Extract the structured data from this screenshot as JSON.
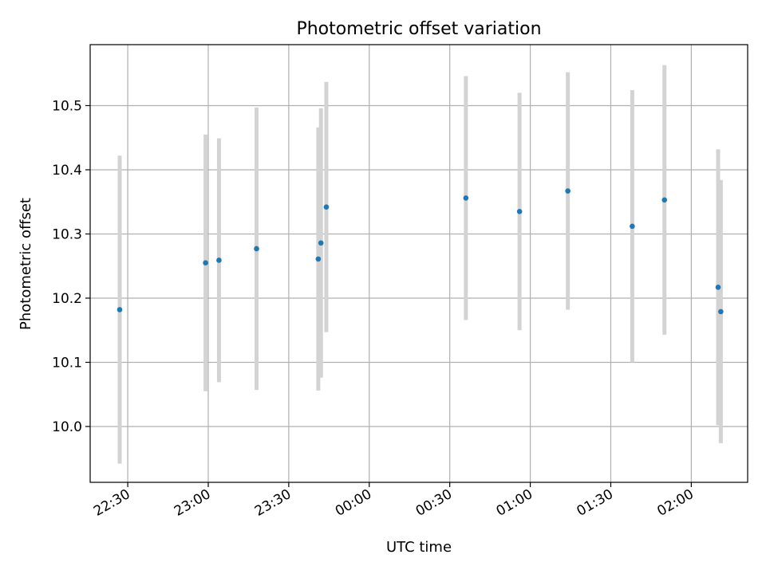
{
  "chart_data": {
    "type": "scatter",
    "title": "Photometric offset variation",
    "xlabel": "UTC time",
    "ylabel": "Photometric offset",
    "grid": true,
    "x_axis_type": "time",
    "x_ticks": [
      "22:30",
      "23:00",
      "23:30",
      "00:00",
      "00:30",
      "01:00",
      "01:30",
      "02:00"
    ],
    "y_ticks": [
      "10.0",
      "10.1",
      "10.2",
      "10.3",
      "10.4",
      "10.5"
    ],
    "xlim": [
      "22:16",
      "02:21"
    ],
    "ylim": [
      9.913,
      10.595
    ],
    "point_color": "#1f77b4",
    "errorbar_color": "#d3d3d3",
    "points": [
      {
        "x": "22:27",
        "y": 10.182,
        "err": 0.24
      },
      {
        "x": "22:59",
        "y": 10.255,
        "err": 0.2
      },
      {
        "x": "23:04",
        "y": 10.259,
        "err": 0.19
      },
      {
        "x": "23:18",
        "y": 10.277,
        "err": 0.22
      },
      {
        "x": "23:41",
        "y": 10.261,
        "err": 0.205
      },
      {
        "x": "23:42",
        "y": 10.286,
        "err": 0.21
      },
      {
        "x": "23:44",
        "y": 10.342,
        "err": 0.195
      },
      {
        "x": "00:36",
        "y": 10.356,
        "err": 0.19
      },
      {
        "x": "00:56",
        "y": 10.335,
        "err": 0.185
      },
      {
        "x": "01:14",
        "y": 10.367,
        "err": 0.185
      },
      {
        "x": "01:38",
        "y": 10.312,
        "err": 0.212
      },
      {
        "x": "01:50",
        "y": 10.353,
        "err": 0.21
      },
      {
        "x": "02:10",
        "y": 10.217,
        "err": 0.215
      },
      {
        "x": "02:11",
        "y": 10.179,
        "err": 0.205
      }
    ]
  }
}
